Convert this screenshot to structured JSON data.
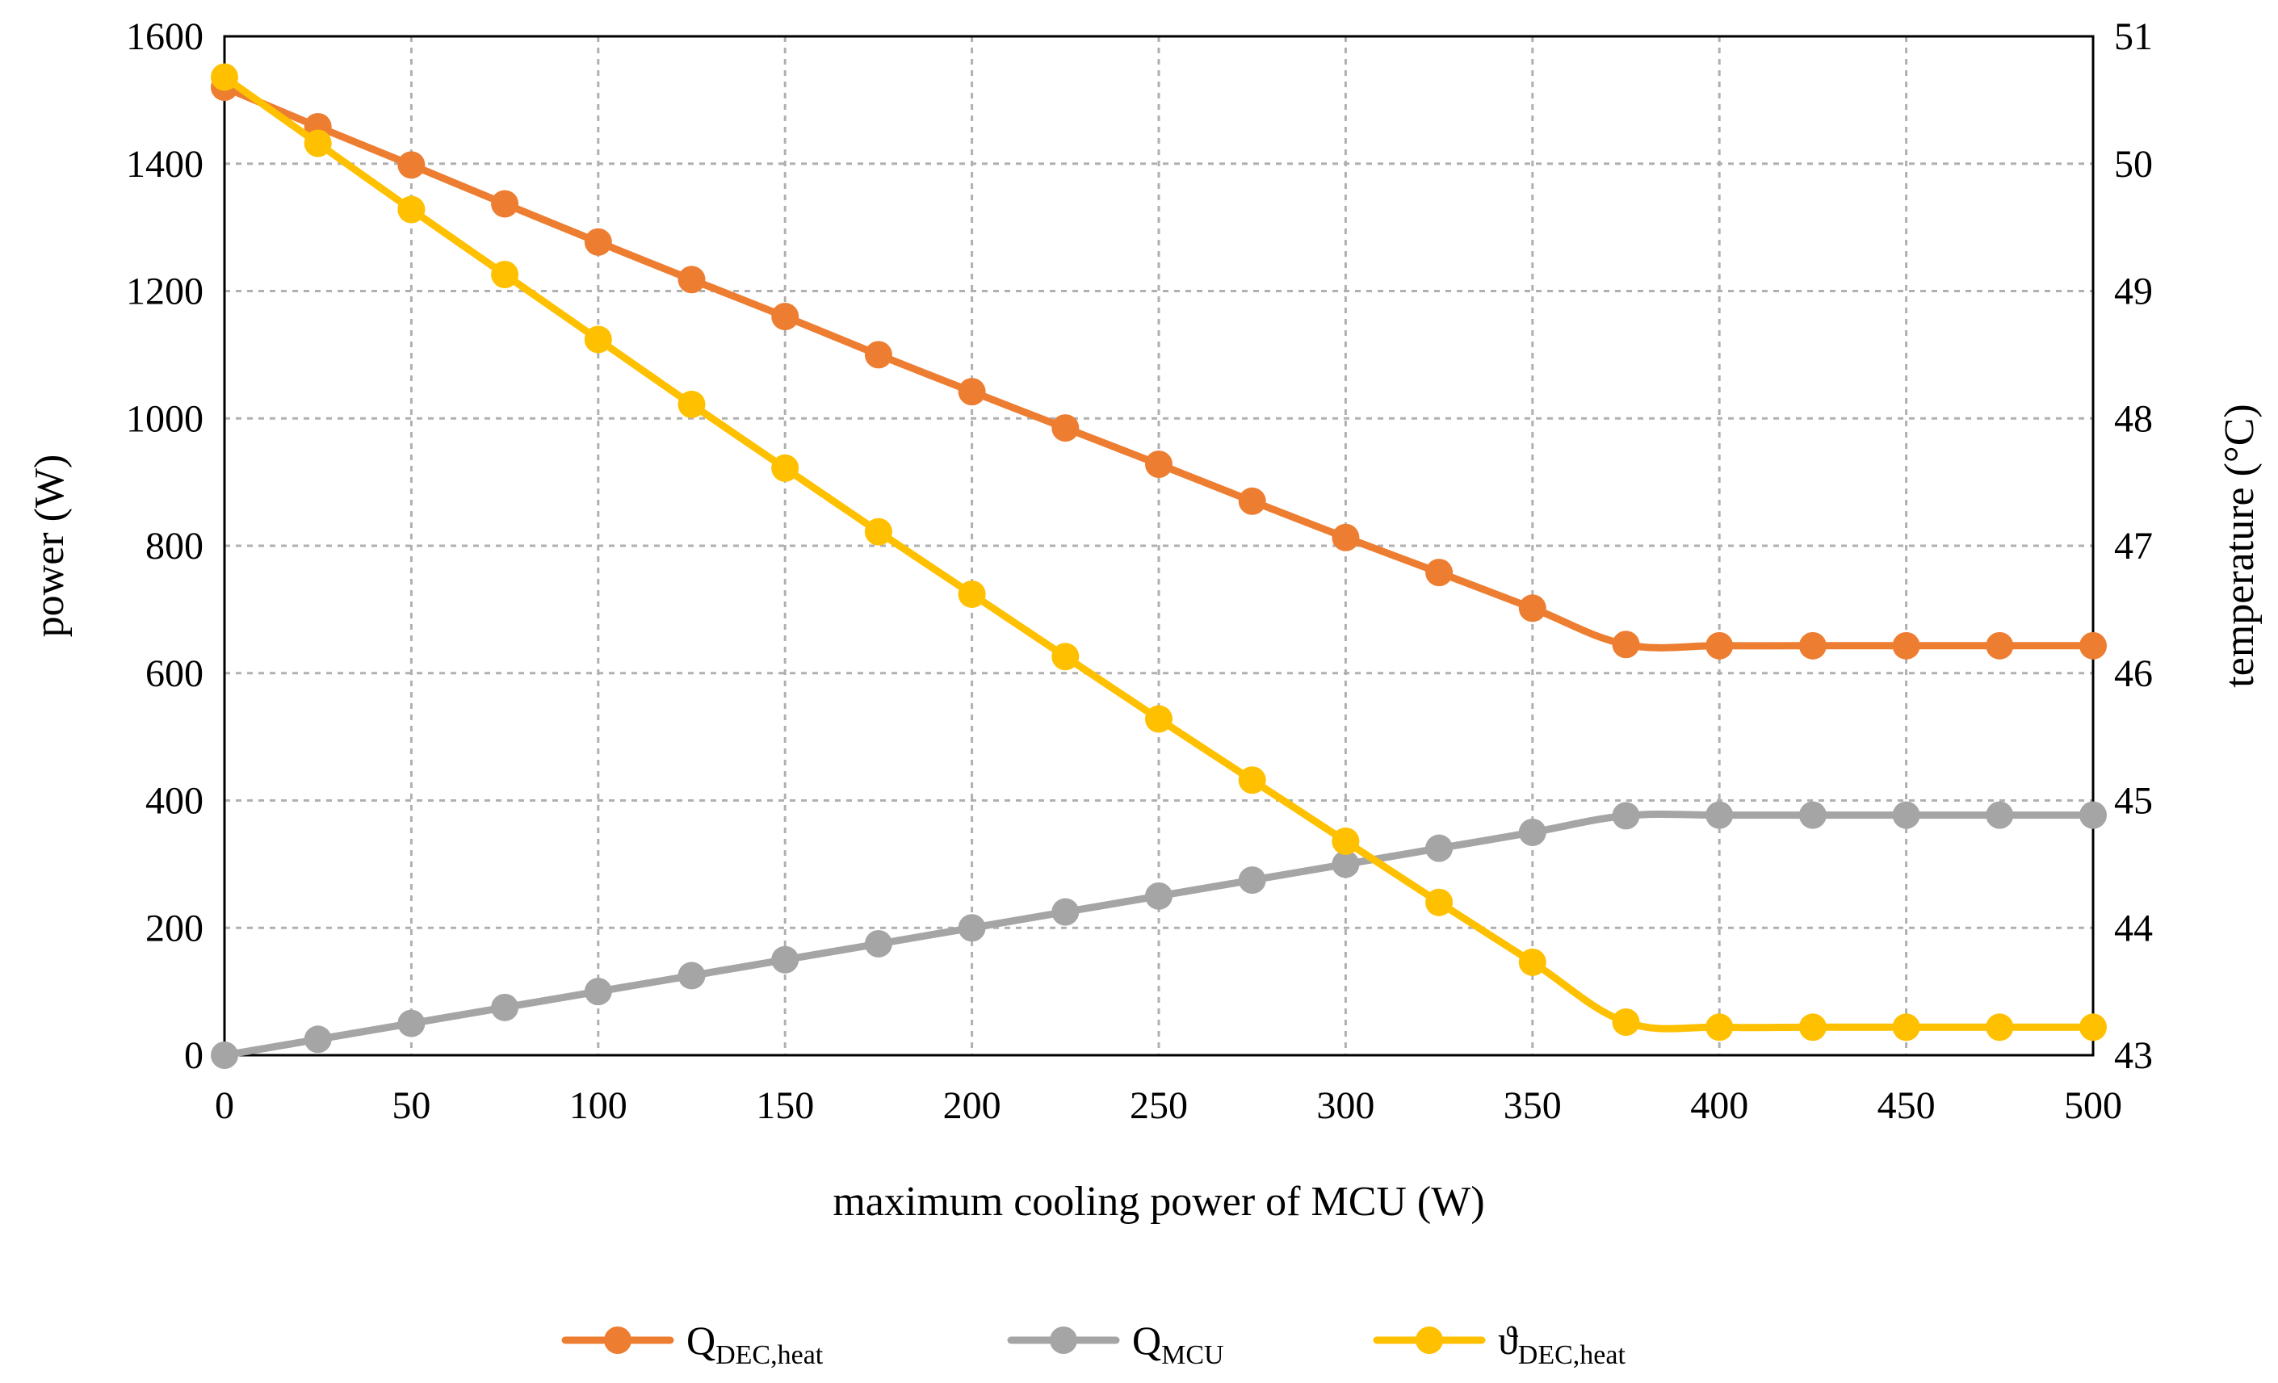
{
  "chart_data": {
    "type": "line",
    "title": "",
    "xlabel": "maximum cooling power of MCU (W)",
    "ylabel": "power (W)",
    "y2label": "temperature (°C)",
    "xlim": [
      0,
      500
    ],
    "ylim": [
      0,
      1600
    ],
    "y2lim": [
      43,
      51
    ],
    "x_ticks": [
      0,
      50,
      100,
      150,
      200,
      250,
      300,
      350,
      400,
      450,
      500
    ],
    "y_ticks": [
      0,
      200,
      400,
      600,
      800,
      1000,
      1200,
      1400,
      1600
    ],
    "y2_ticks": [
      43,
      44,
      45,
      46,
      47,
      48,
      49,
      50,
      51
    ],
    "grid": true,
    "legend_position": "bottom",
    "x": [
      0,
      25,
      50,
      75,
      100,
      125,
      150,
      175,
      200,
      225,
      250,
      275,
      300,
      325,
      350,
      375,
      400,
      425,
      450,
      475,
      500
    ],
    "series": [
      {
        "name": "QDEC,heat",
        "label_main": "Q",
        "label_sub": "DEC,heat",
        "axis": "left",
        "color": "#ED7D31",
        "values": [
          1520,
          1458,
          1398,
          1337,
          1277,
          1218,
          1160,
          1100,
          1042,
          985,
          928,
          870,
          813,
          758,
          702,
          645,
          643,
          643,
          643,
          643,
          643
        ]
      },
      {
        "name": "QMCU",
        "label_main": "Q",
        "label_sub": "MCU",
        "axis": "left",
        "color": "#A5A5A5",
        "values": [
          0,
          25,
          50,
          75,
          100,
          125,
          150,
          175,
          200,
          225,
          250,
          275,
          300,
          325,
          350,
          376,
          377,
          377,
          377,
          377,
          377
        ]
      },
      {
        "name": "ϑDEC,heat",
        "label_main": "ϑ",
        "label_sub": "DEC,heat",
        "axis": "right",
        "color": "#FFC000",
        "values": [
          50.68,
          50.16,
          49.64,
          49.13,
          48.62,
          48.11,
          47.61,
          47.11,
          46.62,
          46.13,
          45.64,
          45.16,
          44.68,
          44.2,
          43.73,
          43.26,
          43.22,
          43.22,
          43.22,
          43.22,
          43.22
        ]
      }
    ]
  }
}
